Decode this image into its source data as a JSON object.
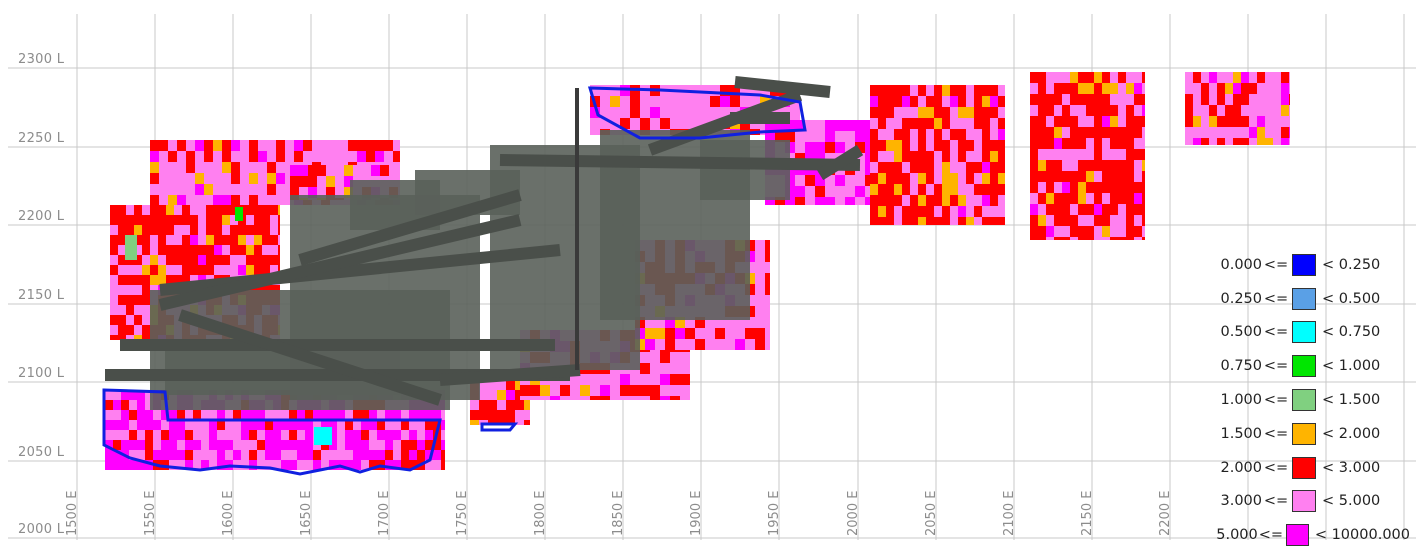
{
  "y_axis_labels": [
    "2300 L",
    "2250 L",
    "2200 L",
    "2150 L",
    "2100 L",
    "2050 L",
    "2000 L"
  ],
  "x_axis_labels": [
    "1500 E",
    "1550 E",
    "1600 E",
    "1650 E",
    "1700 E",
    "1750 E",
    "1800 E",
    "1850 E",
    "1900 E",
    "1950 E",
    "2000 E",
    "2050 E",
    "2100 E",
    "2150 E",
    "2200 E"
  ],
  "legend": {
    "items": [
      {
        "min": "0.000",
        "op": "<=",
        "max": "< 0.250",
        "color": "#0000ff"
      },
      {
        "min": "0.250",
        "op": "<=",
        "max": "< 0.500",
        "color": "#5aa0e6"
      },
      {
        "min": "0.500",
        "op": "<=",
        "max": "< 0.750",
        "color": "#00ffff"
      },
      {
        "min": "0.750",
        "op": "<=",
        "max": "< 1.000",
        "color": "#00e600"
      },
      {
        "min": "1.000",
        "op": "<=",
        "max": "< 1.500",
        "color": "#80d080"
      },
      {
        "min": "1.500",
        "op": "<=",
        "max": "< 2.000",
        "color": "#ffb400"
      },
      {
        "min": "2.000",
        "op": "<=",
        "max": "< 3.000",
        "color": "#ff0000"
      },
      {
        "min": "3.000",
        "op": "<=",
        "max": "< 5.000",
        "color": "#ff80f0"
      },
      {
        "min": "5.000",
        "op": "<=",
        "max": "< 10000.000",
        "color": "#ff00ff"
      }
    ]
  },
  "colors": {
    "stope_grey": "#5a605a",
    "outline_blue": "#1020e0",
    "grid": "#c8c8c8"
  }
}
